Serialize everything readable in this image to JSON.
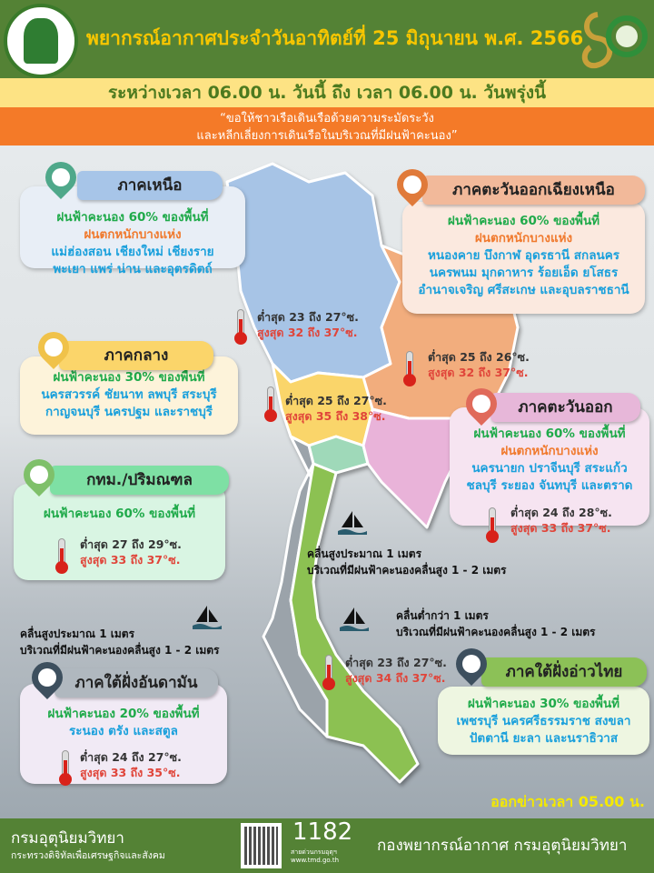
{
  "header": {
    "title": "พยากรณ์อากาศประจำวันอาทิตย์ที่ 25 มิถุนายน พ.ศ. 2566",
    "period": "ระหว่างเวลา 06.00 น. วันนี้ ถึง เวลา 06.00 น. วันพรุ่งนี้",
    "warning_line1": "“ขอให้ชาวเรือเดินเรือด้วยความระมัดระวัง",
    "warning_line2": "และหลีกเลี่ยงการเดินเรือในบริเวณที่มีฝนฟ้าคะนอง”"
  },
  "colors": {
    "header_green": "#548235",
    "title_yellow": "#f7c600",
    "band_yellow": "#fde384",
    "warning_orange": "#f47a28",
    "rain_green": "#1faa4a",
    "heavy_orange": "#f07a2e",
    "province_blue": "#1aa0dc",
    "max_red": "#e0453a"
  },
  "regions": {
    "north": {
      "name": "ภาคเหนือ",
      "rain": "ฝนฟ้าคะนอง 60% ของพื้นที่",
      "heavy": "ฝนตกหนักบางแห่ง",
      "provinces1": "แม่ฮ่องสอน เชียงใหม่ เชียงราย",
      "provinces2": "พะเยา แพร่ น่าน และอุตรดิตถ์",
      "min": "ต่ำสุด 23 ถึง 27°ซ.",
      "max": "สูงสุด 32 ถึง 37°ซ."
    },
    "northeast": {
      "name": "ภาคตะวันออกเฉียงเหนือ",
      "rain": "ฝนฟ้าคะนอง 60% ของพื้นที่",
      "heavy": "ฝนตกหนักบางแห่ง",
      "provinces1": "หนองคาย บึงกาฬ อุดรธานี สกลนคร",
      "provinces2": "นครพนม มุกดาหาร ร้อยเอ็ด ยโสธร",
      "provinces3": "อำนาจเจริญ ศรีสะเกษ และอุบลราชธานี",
      "min": "ต่ำสุด 25 ถึง 26°ซ.",
      "max": "สูงสุด 32 ถึง 37°ซ."
    },
    "central": {
      "name": "ภาคกลาง",
      "rain": "ฝนฟ้าคะนอง 30% ของพื้นที่",
      "provinces1": "นครสวรรค์ ชัยนาท ลพบุรี สระบุรี",
      "provinces2": "กาญจนบุรี นครปฐม และราชบุรี",
      "min": "ต่ำสุด 25 ถึง 27°ซ.",
      "max": "สูงสุด 35 ถึง 38°ซ."
    },
    "east": {
      "name": "ภาคตะวันออก",
      "rain": "ฝนฟ้าคะนอง 60% ของพื้นที่",
      "heavy": "ฝนตกหนักบางแห่ง",
      "provinces1": "นครนายก ปราจีนบุรี สระแก้ว",
      "provinces2": "ชลบุรี ระยอง จันทบุรี และตราด",
      "min": "ต่ำสุด 24 ถึง 28°ซ.",
      "max": "สูงสุด 33 ถึง 37°ซ."
    },
    "bangkok": {
      "name": "กทม./ปริมณฑล",
      "rain": "ฝนฟ้าคะนอง 60% ของพื้นที่",
      "min": "ต่ำสุด 27 ถึง 29°ซ.",
      "max": "สูงสุด 33 ถึง 37°ซ."
    },
    "south_andaman": {
      "name": "ภาคใต้ฝั่งอันดามัน",
      "rain": "ฝนฟ้าคะนอง 20% ของพื้นที่",
      "provinces1": "ระนอง ตรัง และสตูล",
      "min": "ต่ำสุด 24 ถึง 27°ซ.",
      "max": "สูงสุด 33 ถึง 35°ซ."
    },
    "south_gulf": {
      "name": "ภาคใต้ฝั่งอ่าวไทย",
      "rain": "ฝนฟ้าคะนอง 30% ของพื้นที่",
      "provinces1": "เพชรบุรี นครศรีธรรมราช สงขลา",
      "provinces2": "ปัตตานี ยะลา และนราธิวาส",
      "min": "ต่ำสุด 23 ถึง 27°ซ.",
      "max": "สูงสุด 34 ถึง 37°ซ."
    }
  },
  "waves": {
    "upper_gulf": {
      "line1": "คลื่นสูงประมาณ 1 เมตร",
      "line2": "บริเวณที่มีฝนฟ้าคะนองคลื่นสูง 1 - 2 เมตร"
    },
    "andaman": {
      "line1": "คลื่นสูงประมาณ 1 เมตร",
      "line2": "บริเวณที่มีฝนฟ้าคะนองคลื่นสูง 1 - 2 เมตร"
    },
    "lower_gulf": {
      "line1": "คลื่นต่ำกว่า 1 เมตร",
      "line2": "บริเวณที่มีฝนฟ้าคะนองคลื่นสูง 1 - 2 เมตร"
    }
  },
  "issued": "ออกข่าวเวลา 05.00 น.",
  "footer": {
    "org": "กรมอุตุนิยมวิทยา",
    "ministry": "กระทรวงดิจิทัลเพื่อเศรษฐกิจและสังคม",
    "hotline": "1182",
    "hotline_label": "สายด่วนกรมอุตุฯ",
    "website": "www.tmd.go.th",
    "division": "กองพยากรณ์อากาศ กรมอุตุนิยมวิทยา"
  }
}
